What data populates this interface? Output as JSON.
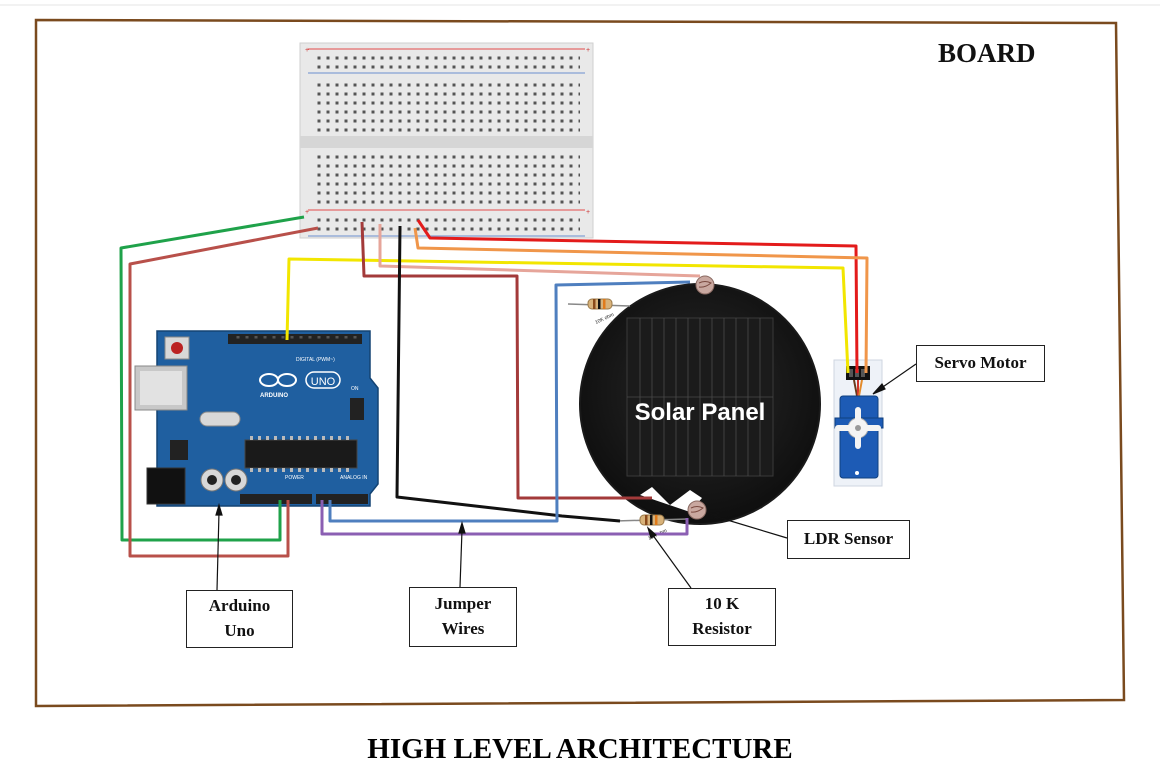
{
  "board": {
    "title": "BOARD"
  },
  "caption": "HIGH LEVEL ARCHITECTURE",
  "solar_panel": {
    "label": "Solar Panel"
  },
  "arduino": {
    "logo_text": "UNO",
    "brand": "ARDUINO",
    "digital_label": "DIGITAL (PWM~)",
    "power_label": "POWER",
    "analog_label": "ANALOG IN",
    "on_label": "ON"
  },
  "resistor_marking": "10K ohm",
  "callouts": {
    "servo_motor": "Servo Motor",
    "ldr_sensor": "LDR Sensor",
    "arduino_uno": [
      "Arduino",
      "Uno"
    ],
    "jumper_wires": [
      "Jumper",
      "Wires"
    ],
    "resistor": [
      "10 K",
      "Resistor"
    ]
  },
  "colors": {
    "board_border": "#7a4a1e",
    "wire_red": "#e31b1b",
    "wire_darkred": "#a33a3a",
    "wire_green": "#1fa24a",
    "wire_yellow": "#f2e600",
    "wire_orange": "#f0964a",
    "wire_pink": "#e6a59a",
    "wire_black": "#111111",
    "wire_blue": "#4f7fbf",
    "wire_purple": "#8b5fb3",
    "arduino_blue": "#1f5fa0",
    "breadboard": "#e8e8e8",
    "servo_blue": "#1d5bb5"
  }
}
